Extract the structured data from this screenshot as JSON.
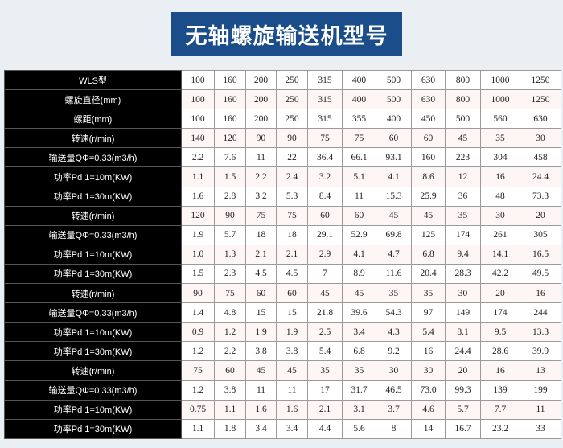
{
  "title": "无轴螺旋输送机型号",
  "rows": [
    {
      "label": "WLS型",
      "values": [
        "100",
        "160",
        "200",
        "250",
        "315",
        "400",
        "500",
        "630",
        "800",
        "1000",
        "1250"
      ]
    },
    {
      "label": "螺旋直径(mm)",
      "values": [
        "100",
        "160",
        "200",
        "250",
        "315",
        "400",
        "500",
        "630",
        "800",
        "1000",
        "1250"
      ]
    },
    {
      "label": "螺距(mm)",
      "values": [
        "100",
        "160",
        "200",
        "250",
        "315",
        "355",
        "400",
        "450",
        "500",
        "560",
        "630"
      ]
    },
    {
      "label": "转速(r/min)",
      "values": [
        "140",
        "120",
        "90",
        "90",
        "75",
        "75",
        "60",
        "60",
        "45",
        "35",
        "30"
      ]
    },
    {
      "label": "输送量QΦ=0.33(m3/h)",
      "values": [
        "2.2",
        "7.6",
        "11",
        "22",
        "36.4",
        "66.1",
        "93.1",
        "160",
        "223",
        "304",
        "458"
      ]
    },
    {
      "label": "功率Pd 1=10m(KW)",
      "values": [
        "1.1",
        "1.5",
        "2.2",
        "2.4",
        "3.2",
        "5.1",
        "4.1",
        "8.6",
        "12",
        "16",
        "24.4"
      ]
    },
    {
      "label": "功率Pd 1=30m(KW)",
      "values": [
        "1.6",
        "2.8",
        "3.2",
        "5.3",
        "8.4",
        "11",
        "15.3",
        "25.9",
        "36",
        "48",
        "73.3"
      ]
    },
    {
      "label": "转速(r/min)",
      "values": [
        "120",
        "90",
        "75",
        "75",
        "60",
        "60",
        "45",
        "45",
        "35",
        "30",
        "20"
      ]
    },
    {
      "label": "输送量QΦ=0.33(m3/h)",
      "values": [
        "1.9",
        "5.7",
        "18",
        "18",
        "29.1",
        "52.9",
        "69.8",
        "125",
        "174",
        "261",
        "305"
      ]
    },
    {
      "label": "功率Pd 1=10m(KW)",
      "values": [
        "1.0",
        "1.3",
        "2.1",
        "2.1",
        "2.9",
        "4.1",
        "4.7",
        "6.8",
        "9.4",
        "14.1",
        "16.5"
      ]
    },
    {
      "label": "功率Pd 1=30m(KW)",
      "values": [
        "1.5",
        "2.3",
        "4.5",
        "4.5",
        "7",
        "8.9",
        "11.6",
        "20.4",
        "28.3",
        "42.2",
        "49.5"
      ]
    },
    {
      "label": "转速(r/min)",
      "values": [
        "90",
        "75",
        "60",
        "60",
        "45",
        "45",
        "35",
        "35",
        "30",
        "20",
        "16"
      ]
    },
    {
      "label": "输送量QΦ=0.33(m3/h)",
      "values": [
        "1.4",
        "4.8",
        "15",
        "15",
        "21.8",
        "39.6",
        "54.3",
        "97",
        "149",
        "174",
        "244"
      ]
    },
    {
      "label": "功率Pd 1=10m(KW)",
      "values": [
        "0.9",
        "1.2",
        "1.9",
        "1.9",
        "2.5",
        "3.4",
        "4.3",
        "5.4",
        "8.1",
        "9.5",
        "13.3"
      ]
    },
    {
      "label": "功率Pd 1=30m(KW)",
      "values": [
        "1.2",
        "2.2",
        "3.8",
        "3.8",
        "5.4",
        "6.8",
        "9.2",
        "16",
        "24.4",
        "28.6",
        "39.9"
      ]
    },
    {
      "label": "转速(r/min)",
      "values": [
        "75",
        "60",
        "45",
        "45",
        "35",
        "35",
        "30",
        "30",
        "20",
        "16",
        "13"
      ]
    },
    {
      "label": "输送量QΦ=0.33(m3/h)",
      "values": [
        "1.2",
        "3.8",
        "11",
        "11",
        "17",
        "31.7",
        "46.5",
        "73.0",
        "99.3",
        "139",
        "199"
      ]
    },
    {
      "label": "功率Pd 1=10m(KW)",
      "values": [
        "0.75",
        "1.1",
        "1.6",
        "1.6",
        "2.1",
        "3.1",
        "3.7",
        "4.6",
        "5.7",
        "7.7",
        "11"
      ]
    },
    {
      "label": "功率Pd 1=30m(KW)",
      "values": [
        "1.1",
        "1.8",
        "3.4",
        "3.4",
        "4.4",
        "5.6",
        "8",
        "14",
        "16.7",
        "23.2",
        "33"
      ]
    }
  ]
}
